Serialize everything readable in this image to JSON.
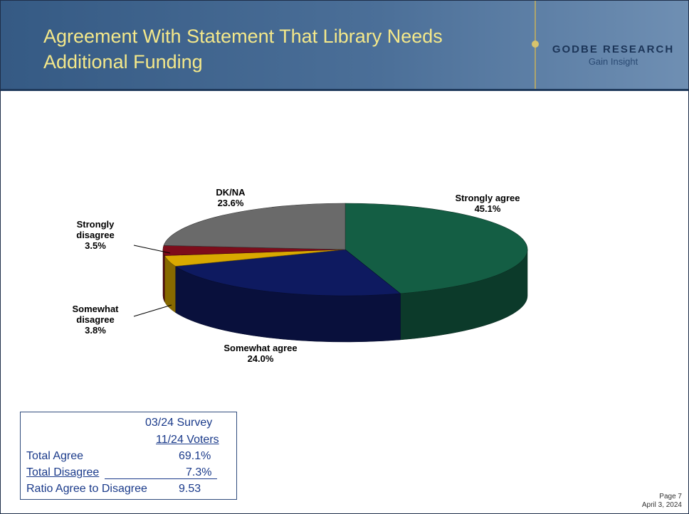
{
  "header": {
    "title_line1": "Agreement With Statement That Library Needs",
    "title_line2": "Additional Funding",
    "brand_name": "GODBE RESEARCH",
    "brand_tagline": "Gain Insight"
  },
  "chart_data": {
    "type": "pie",
    "title": "",
    "slices": [
      {
        "label": "Strongly agree",
        "label_lines": [
          "Strongly agree"
        ],
        "value": 45.1,
        "value_label": "45.1%",
        "color": "#145e44"
      },
      {
        "label": "Somewhat agree",
        "label_lines": [
          "Somewhat agree"
        ],
        "value": 24.0,
        "value_label": "24.0%",
        "color": "#0e1a60"
      },
      {
        "label": "Somewhat disagree",
        "label_lines": [
          "Somewhat",
          "disagree"
        ],
        "value": 3.8,
        "value_label": "3.8%",
        "color": "#d9a900"
      },
      {
        "label": "Strongly disagree",
        "label_lines": [
          "Strongly",
          "disagree"
        ],
        "value": 3.5,
        "value_label": "3.5%",
        "color": "#7d0c1a"
      },
      {
        "label": "DK/NA",
        "label_lines": [
          "DK/NA"
        ],
        "value": 23.6,
        "value_label": "23.6%",
        "color": "#6a6a6a"
      }
    ]
  },
  "summary": {
    "col_header1": "03/24 Survey",
    "col_header2": "11/24 Voters",
    "rows": [
      {
        "label": "Total Agree",
        "value": "69.1%"
      },
      {
        "label": "Total Disagree",
        "value": "7.3%"
      },
      {
        "label": "Ratio Agree to Disagree",
        "value": "9.53"
      }
    ]
  },
  "footer": {
    "page": "Page 7",
    "date": "April 3, 2024"
  }
}
